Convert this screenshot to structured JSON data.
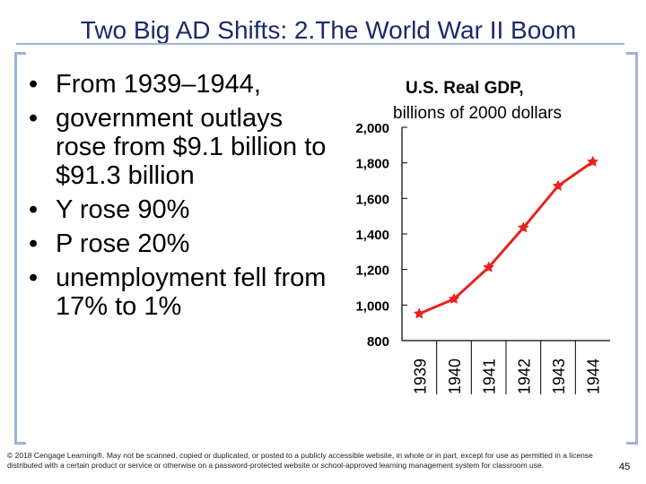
{
  "slide": {
    "title": "Two Big AD Shifts:  2.The World War II Boom",
    "bullets": [
      "From 1939–1944,",
      "government outlays rose from $9.1 billion to $91.3 billion",
      "Y  rose 90%",
      "P  rose 20%",
      "unemployment fell from 17% to 1%"
    ],
    "copyright": "© 2018 Cengage Learning®. May not be scanned, copied or duplicated, or posted to a publicly accessible website, in whole or in part, except for use as permitted in a license distributed with a certain product or service or otherwise on a password-protected website or school-approved learning management system for classroom use.",
    "page_number": "45"
  },
  "colors": {
    "title": "#1b2a6b",
    "accent": "#9fb3d9",
    "series": "#e8231f"
  },
  "chart_data": {
    "type": "line",
    "title": "U.S. Real GDP,",
    "subtitle": "billions of 2000 dollars",
    "categories": [
      "1939",
      "1940",
      "1941",
      "1942",
      "1943",
      "1944"
    ],
    "series": [
      {
        "name": "Real GDP",
        "values": [
          951,
          1034,
          1212,
          1435,
          1670,
          1806
        ]
      }
    ],
    "ylim": [
      800,
      2000
    ],
    "yticks": [
      800,
      1000,
      1200,
      1400,
      1600,
      1800,
      2000
    ],
    "ytick_labels": [
      "800",
      "1,000",
      "1,200",
      "1,400",
      "1,600",
      "1,800",
      "2,000"
    ]
  }
}
